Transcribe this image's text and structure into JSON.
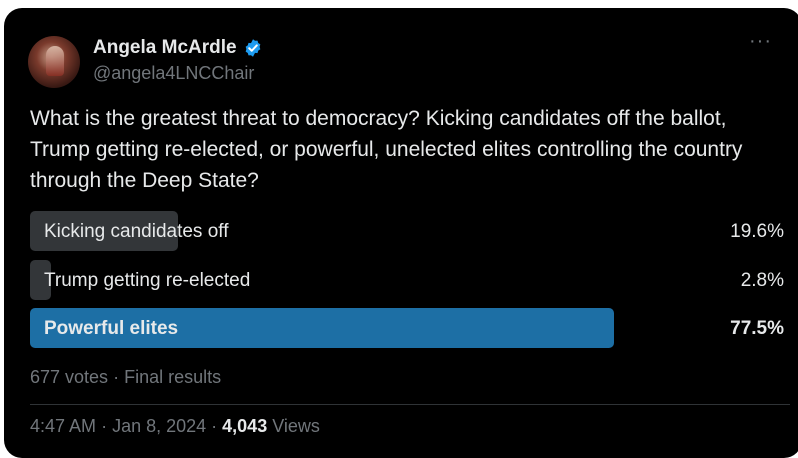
{
  "author": {
    "name": "Angela McArdle",
    "handle": "@angela4LNCChair",
    "verified_color": "#1d9bf0"
  },
  "menu": {
    "more_glyph": "···"
  },
  "question": "What is the greatest threat to democracy? Kicking candidates off the ballot, Trump getting re-elected, or powerful, unelected elites controlling the country through the Deep State?",
  "poll": {
    "options": [
      {
        "label": "Kicking candidates off",
        "percent_text": "19.6%",
        "percent": 19.6,
        "winner": false
      },
      {
        "label": "Trump getting re-elected",
        "percent_text": "2.8%",
        "percent": 2.8,
        "winner": false
      },
      {
        "label": "Powerful elites",
        "percent_text": "77.5%",
        "percent": 77.5,
        "winner": true
      }
    ],
    "votes": "677 votes",
    "status": "Final results",
    "colors": {
      "winner": "#1d6fa5",
      "other": "#333639"
    }
  },
  "meta": {
    "time": "4:47 AM",
    "date": "Jan 8, 2024",
    "views_count": "4,043",
    "views_label": "Views"
  }
}
